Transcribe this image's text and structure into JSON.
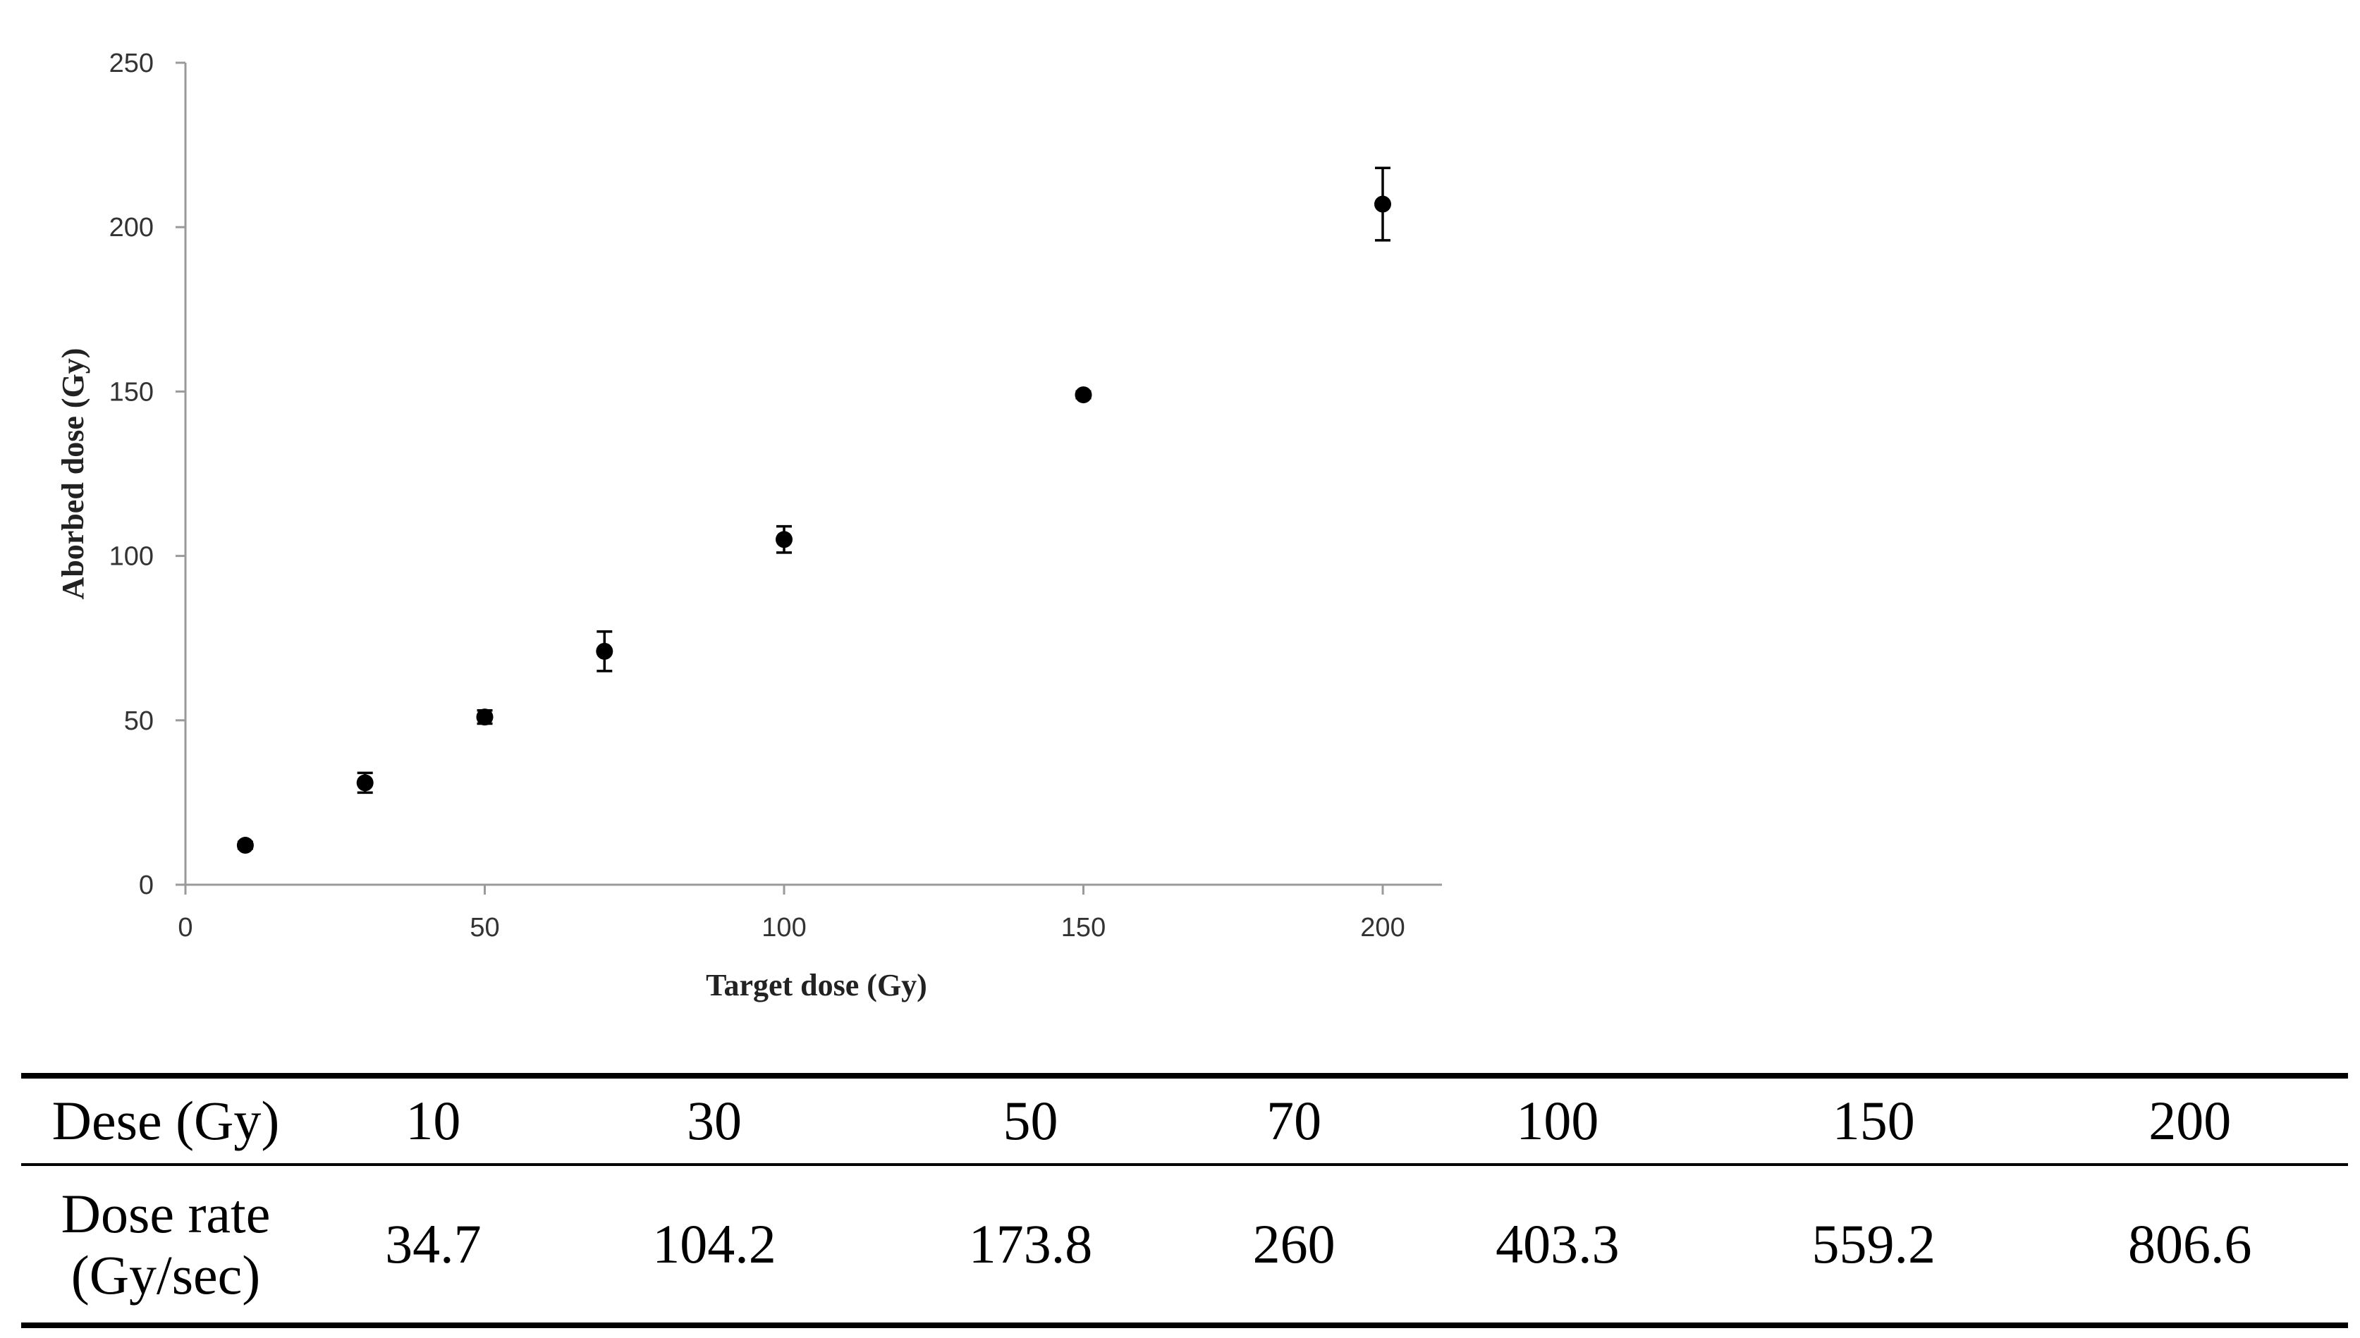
{
  "chart_data": {
    "type": "scatter",
    "xlabel": "Target dose (Gy)",
    "ylabel": "Aborbed dose (Gy)",
    "xlim": [
      0,
      210
    ],
    "ylim": [
      0,
      250
    ],
    "xticks": [
      "0",
      "50",
      "100",
      "150",
      "200"
    ],
    "yticks": [
      "0",
      "50",
      "100",
      "150",
      "200",
      "250"
    ],
    "grid": false,
    "series": [
      {
        "x": [
          10,
          30,
          50,
          70,
          100,
          150,
          200
        ],
        "y": [
          12,
          31,
          51,
          71,
          105,
          149,
          207
        ],
        "error": [
          1,
          3,
          2,
          6,
          4,
          1,
          11
        ]
      }
    ]
  },
  "table": {
    "row1_label": "Dese (Gy)",
    "row1_values": [
      "10",
      "30",
      "50",
      "70",
      "100",
      "150",
      "200"
    ],
    "row2_label_line1": "Dose rate",
    "row2_label_line2": "(Gy/sec)",
    "row2_values": [
      "34.7",
      "104.2",
      "173.8",
      "260",
      "403.3",
      "559.2",
      "806.6"
    ]
  }
}
